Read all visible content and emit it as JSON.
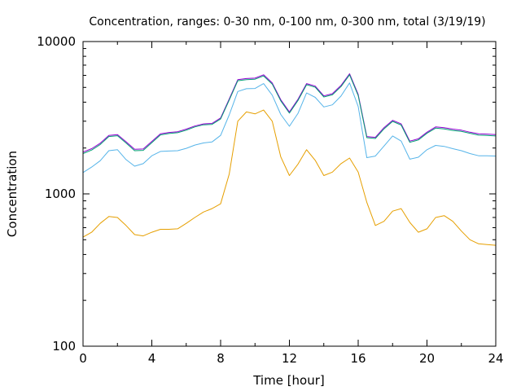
{
  "chart_data": {
    "type": "line",
    "title": "Concentration, ranges: 0-30 nm, 0-100 nm, 0-300 nm, total (3/19/19)",
    "xlabel": "Time [hour]",
    "ylabel": "Concentration",
    "xlim": [
      0,
      24
    ],
    "ylim": [
      100,
      10000
    ],
    "yscale": "log",
    "x_ticks": [
      0,
      4,
      8,
      12,
      16,
      20,
      24
    ],
    "x_tick_labels": [
      "0",
      "4",
      "8",
      "12",
      "16",
      "20",
      "24"
    ],
    "y_ticks": [
      100,
      1000,
      10000
    ],
    "y_tick_labels": [
      "100",
      "1000",
      "10000"
    ],
    "x": [
      0,
      0.5,
      1,
      1.5,
      2,
      2.5,
      3,
      3.5,
      4,
      4.5,
      5,
      5.5,
      6,
      6.5,
      7,
      7.5,
      8,
      8.5,
      9,
      9.5,
      10,
      10.5,
      11,
      11.5,
      12,
      12.5,
      13,
      13.5,
      14,
      14.5,
      15,
      15.5,
      16,
      16.5,
      17,
      17.5,
      18,
      18.5,
      19,
      19.5,
      20,
      20.5,
      21,
      21.5,
      22,
      22.5,
      23,
      23.5,
      24
    ],
    "series": [
      {
        "name": "total",
        "color": "#9400d3",
        "values": [
          1880,
          1980,
          2150,
          2420,
          2450,
          2200,
          1960,
          1970,
          2210,
          2480,
          2530,
          2560,
          2660,
          2790,
          2880,
          2900,
          3150,
          4200,
          5620,
          5720,
          5750,
          6050,
          5350,
          4150,
          3450,
          4180,
          5300,
          5100,
          4400,
          4550,
          5150,
          6150,
          4500,
          2380,
          2350,
          2720,
          3040,
          2880,
          2220,
          2300,
          2540,
          2750,
          2720,
          2660,
          2620,
          2540,
          2480,
          2470,
          2450
        ]
      },
      {
        "name": "0-300 nm",
        "color": "#009e73",
        "values": [
          1840,
          1940,
          2110,
          2380,
          2410,
          2160,
          1920,
          1930,
          2170,
          2440,
          2490,
          2520,
          2620,
          2750,
          2840,
          2860,
          3100,
          4130,
          5530,
          5630,
          5660,
          5950,
          5260,
          4080,
          3390,
          4110,
          5210,
          5020,
          4330,
          4470,
          5060,
          6050,
          4420,
          2340,
          2310,
          2670,
          2990,
          2830,
          2180,
          2260,
          2500,
          2700,
          2670,
          2610,
          2570,
          2500,
          2430,
          2420,
          2400
        ]
      },
      {
        "name": "0-100 nm",
        "color": "#56b4e9",
        "values": [
          1380,
          1500,
          1650,
          1920,
          1950,
          1680,
          1520,
          1580,
          1780,
          1900,
          1910,
          1920,
          1990,
          2090,
          2160,
          2190,
          2420,
          3300,
          4700,
          4900,
          4920,
          5300,
          4450,
          3320,
          2780,
          3380,
          4600,
          4300,
          3720,
          3840,
          4390,
          5350,
          3750,
          1730,
          1770,
          2060,
          2400,
          2220,
          1690,
          1740,
          1950,
          2080,
          2050,
          1980,
          1920,
          1840,
          1780,
          1780,
          1770
        ]
      },
      {
        "name": "0-30 nm",
        "color": "#e69f00",
        "values": [
          520,
          560,
          640,
          710,
          700,
          620,
          540,
          530,
          560,
          585,
          585,
          590,
          640,
          700,
          760,
          800,
          860,
          1350,
          3000,
          3450,
          3350,
          3550,
          3000,
          1750,
          1320,
          1570,
          1950,
          1660,
          1320,
          1390,
          1580,
          1720,
          1390,
          880,
          620,
          660,
          770,
          800,
          650,
          560,
          590,
          700,
          720,
          660,
          570,
          500,
          470,
          465,
          460
        ]
      }
    ]
  }
}
